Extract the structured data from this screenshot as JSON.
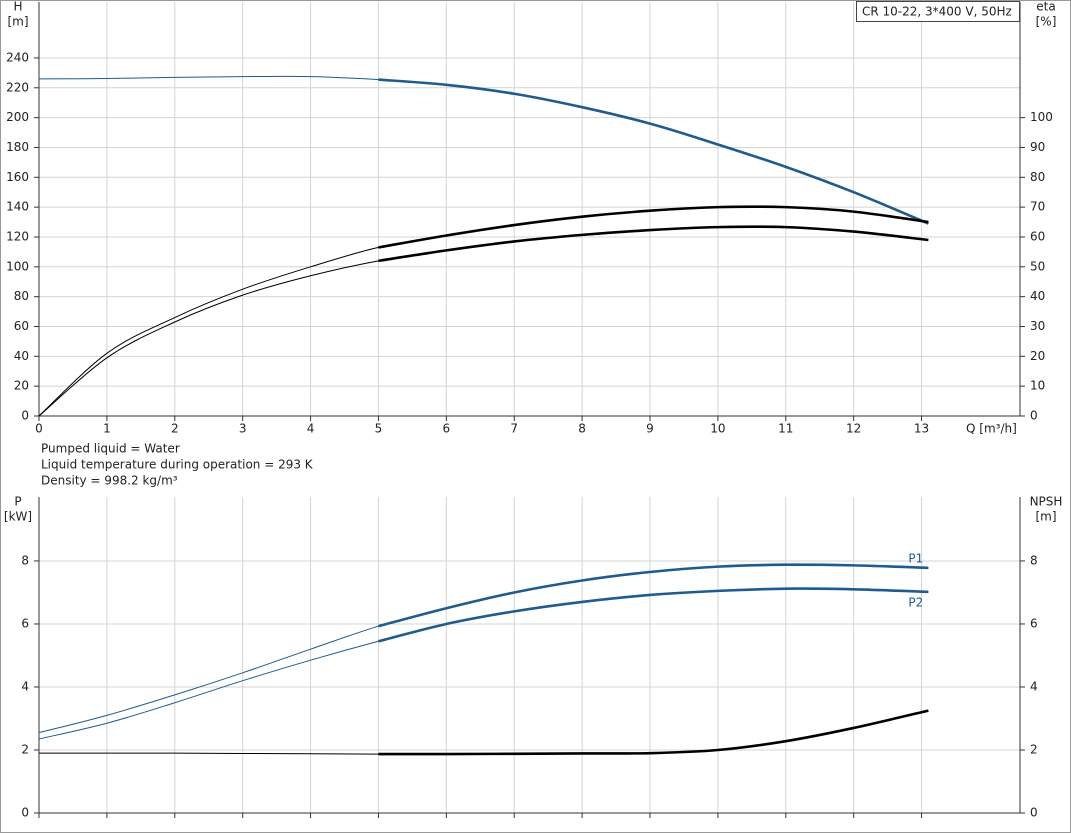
{
  "chart_data": [
    {
      "type": "line",
      "title": "CR 10-22, 3*400 V, 50Hz",
      "ylabel": "H",
      "yunit": "[m]",
      "y2label": "eta",
      "y2unit": "[%]",
      "xlabel": "Q [m³/h]",
      "xlim": [
        0,
        14.45
      ],
      "xticks": [
        0,
        1,
        2,
        3,
        4,
        5,
        6,
        7,
        8,
        9,
        10,
        11,
        12,
        13
      ],
      "xtick_labels": true,
      "ylim": [
        0,
        277.5
      ],
      "yticks": [
        0,
        20,
        40,
        60,
        80,
        100,
        120,
        140,
        160,
        180,
        200,
        220,
        240
      ],
      "y2lim": [
        0,
        138.75
      ],
      "y2ticks": [
        0,
        10,
        20,
        30,
        40,
        50,
        60,
        70,
        80,
        90,
        100
      ],
      "grid": true,
      "bold_from": 5,
      "x": [
        0,
        1,
        2,
        3,
        4,
        5,
        6,
        7,
        8,
        9,
        10,
        11,
        12,
        13.1
      ],
      "series": [
        {
          "color": "#1f5b8e",
          "values": [
            226,
            226.2,
            227,
            227.5,
            227.5,
            225.5,
            222,
            216,
            207,
            196,
            182,
            167,
            150,
            129
          ]
        },
        {
          "color": "#000000",
          "axis": "y2",
          "values": [
            0,
            21,
            33,
            42.5,
            50,
            56.5,
            60.5,
            64,
            66.8,
            68.8,
            70,
            70,
            68.5,
            65
          ]
        },
        {
          "color": "#000000",
          "axis": "y2",
          "values": [
            0,
            19.5,
            31.5,
            40.5,
            47,
            52,
            55.5,
            58.5,
            60.7,
            62.3,
            63.3,
            63.3,
            61.8,
            59
          ]
        }
      ]
    },
    {
      "type": "line",
      "ylabel": "P",
      "yunit": "[kW]",
      "y2label": "NPSH",
      "y2unit": "[m]",
      "xlim": [
        0,
        14.45
      ],
      "xticks": [
        0,
        1,
        2,
        3,
        4,
        5,
        6,
        7,
        8,
        9,
        10,
        11,
        12,
        13
      ],
      "xtick_labels": false,
      "ylim": [
        0,
        10.03
      ],
      "yticks": [
        0,
        2,
        4,
        6,
        8
      ],
      "y2lim": [
        0,
        10.03
      ],
      "y2ticks": [
        0,
        2,
        4,
        6,
        8
      ],
      "grid": true,
      "bold_from": 5,
      "x": [
        0,
        1,
        2,
        3,
        4,
        5,
        6,
        7,
        8,
        9,
        10,
        11,
        12,
        13.1
      ],
      "series": [
        {
          "name": "P1",
          "color": "#1f5b8e",
          "values": [
            2.55,
            3.1,
            3.75,
            4.45,
            5.2,
            5.93,
            6.5,
            7.0,
            7.38,
            7.65,
            7.82,
            7.88,
            7.86,
            7.78
          ]
        },
        {
          "name": "P2",
          "color": "#1f5b8e",
          "values": [
            2.35,
            2.85,
            3.5,
            4.2,
            4.85,
            5.45,
            6.0,
            6.4,
            6.7,
            6.92,
            7.05,
            7.12,
            7.1,
            7.02
          ]
        },
        {
          "color": "#000000",
          "axis": "y2",
          "values": [
            1.9,
            1.9,
            1.9,
            1.89,
            1.88,
            1.87,
            1.87,
            1.88,
            1.89,
            1.9,
            2.0,
            2.28,
            2.7,
            3.25
          ]
        }
      ]
    }
  ],
  "notes": [
    "Pumped liquid = Water",
    "Liquid temperature during operation = 293 K",
    "Density = 998.2 kg/m³"
  ]
}
